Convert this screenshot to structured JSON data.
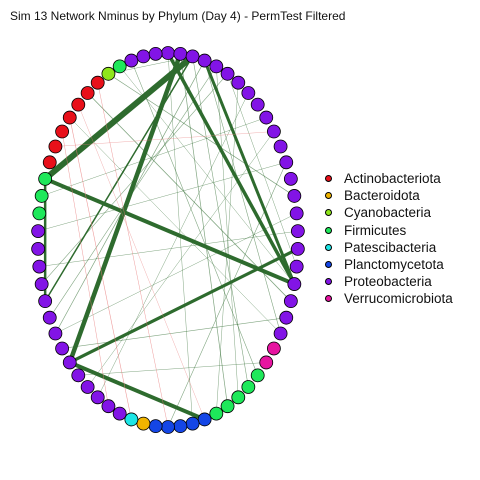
{
  "title": "Sim 13 Network Nminus by Phylum (Day 4) - PermTest Filtered",
  "chart_data": {
    "type": "network",
    "layout": "circle",
    "legend_position": "right",
    "legend": [
      {
        "label": "Actinobacteriota",
        "color": "#e8101a"
      },
      {
        "label": "Bacteroidota",
        "color": "#f0b400"
      },
      {
        "label": "Cyanobacteria",
        "color": "#8fe61a"
      },
      {
        "label": "Firmicutes",
        "color": "#1ee85a"
      },
      {
        "label": "Patescibacteria",
        "color": "#1de6e6"
      },
      {
        "label": "Planctomycetota",
        "color": "#1446e6"
      },
      {
        "label": "Proteobacteria",
        "color": "#8214e6"
      },
      {
        "label": "Verrucomicrobiota",
        "color": "#e614a0"
      }
    ],
    "node_phyla": [
      "Proteobacteria",
      "Proteobacteria",
      "Proteobacteria",
      "Proteobacteria",
      "Proteobacteria",
      "Proteobacteria",
      "Proteobacteria",
      "Proteobacteria",
      "Proteobacteria",
      "Proteobacteria",
      "Proteobacteria",
      "Proteobacteria",
      "Proteobacteria",
      "Proteobacteria",
      "Proteobacteria",
      "Proteobacteria",
      "Proteobacteria",
      "Proteobacteria",
      "Proteobacteria",
      "Proteobacteria",
      "Proteobacteria",
      "Proteobacteria",
      "Proteobacteria",
      "Verrucomicrobiota",
      "Verrucomicrobiota",
      "Firmicutes",
      "Firmicutes",
      "Firmicutes",
      "Firmicutes",
      "Firmicutes",
      "Planctomycetota",
      "Planctomycetota",
      "Planctomycetota",
      "Planctomycetota",
      "Planctomycetota",
      "Bacteroidota",
      "Patescibacteria",
      "Proteobacteria",
      "Proteobacteria",
      "Proteobacteria",
      "Proteobacteria",
      "Proteobacteria",
      "Proteobacteria",
      "Proteobacteria",
      "Proteobacteria",
      "Proteobacteria",
      "Proteobacteria",
      "Proteobacteria",
      "Proteobacteria",
      "Proteobacteria",
      "Proteobacteria",
      "Firmicutes",
      "Firmicutes",
      "Firmicutes",
      "Actinobacteriota",
      "Actinobacteriota",
      "Actinobacteriota",
      "Actinobacteriota",
      "Actinobacteriota",
      "Actinobacteriota",
      "Actinobacteriota",
      "Cyanobacteria",
      "Firmicutes",
      "Proteobacteria",
      "Proteobacteria",
      "Proteobacteria"
    ],
    "edges": [
      {
        "source": 2,
        "target": 53,
        "weight": 6,
        "sign": "positive"
      },
      {
        "source": 1,
        "target": 42,
        "weight": 4.5,
        "sign": "positive"
      },
      {
        "source": 0,
        "target": 19,
        "weight": 3.5,
        "sign": "positive"
      },
      {
        "source": 53,
        "target": 19,
        "weight": 4,
        "sign": "positive"
      },
      {
        "source": 3,
        "target": 19,
        "weight": 3,
        "sign": "positive"
      },
      {
        "source": 42,
        "target": 17,
        "weight": 3.2,
        "sign": "positive"
      },
      {
        "source": 46,
        "target": 53,
        "weight": 2.5,
        "sign": "positive"
      },
      {
        "source": 42,
        "target": 30,
        "weight": 4,
        "sign": "positive"
      },
      {
        "source": 46,
        "target": 2,
        "weight": 1.5,
        "sign": "positive"
      },
      {
        "source": 59,
        "target": 20,
        "weight": 0.8,
        "sign": "positive"
      },
      {
        "source": 61,
        "target": 14,
        "weight": 0.7,
        "sign": "positive"
      },
      {
        "source": 63,
        "target": 25,
        "weight": 0.6,
        "sign": "positive"
      },
      {
        "source": 44,
        "target": 3,
        "weight": 0.7,
        "sign": "positive"
      },
      {
        "source": 47,
        "target": 5,
        "weight": 0.6,
        "sign": "positive"
      },
      {
        "source": 45,
        "target": 4,
        "weight": 0.6,
        "sign": "positive"
      },
      {
        "source": 1,
        "target": 28,
        "weight": 0.7,
        "sign": "positive"
      },
      {
        "source": 2,
        "target": 26,
        "weight": 0.6,
        "sign": "positive"
      },
      {
        "source": 3,
        "target": 22,
        "weight": 0.6,
        "sign": "positive"
      },
      {
        "source": 4,
        "target": 27,
        "weight": 0.5,
        "sign": "positive"
      },
      {
        "source": 5,
        "target": 18,
        "weight": 0.5,
        "sign": "positive"
      },
      {
        "source": 6,
        "target": 29,
        "weight": 0.5,
        "sign": "positive"
      },
      {
        "source": 0,
        "target": 31,
        "weight": 0.5,
        "sign": "positive"
      },
      {
        "source": 12,
        "target": 33,
        "weight": 0.6,
        "sign": "positive"
      },
      {
        "source": 15,
        "target": 44,
        "weight": 0.5,
        "sign": "positive"
      },
      {
        "source": 10,
        "target": 40,
        "weight": 0.5,
        "sign": "positive"
      },
      {
        "source": 52,
        "target": 9,
        "weight": 0.5,
        "sign": "positive"
      },
      {
        "source": 50,
        "target": 12,
        "weight": 0.5,
        "sign": "positive"
      },
      {
        "source": 48,
        "target": 16,
        "weight": 0.5,
        "sign": "positive"
      },
      {
        "source": 43,
        "target": 21,
        "weight": 0.6,
        "sign": "positive"
      },
      {
        "source": 41,
        "target": 24,
        "weight": 0.5,
        "sign": "positive"
      },
      {
        "source": 39,
        "target": 7,
        "weight": 0.5,
        "sign": "positive"
      },
      {
        "source": 61,
        "target": 2,
        "weight": 0.5,
        "sign": "positive"
      },
      {
        "source": 57,
        "target": 22,
        "weight": 0.5,
        "sign": "positive"
      },
      {
        "source": 62,
        "target": 19,
        "weight": 0.5,
        "sign": "positive"
      },
      {
        "source": 57,
        "target": 36,
        "weight": 0.6,
        "sign": "negative"
      },
      {
        "source": 56,
        "target": 38,
        "weight": 0.5,
        "sign": "negative"
      },
      {
        "source": 60,
        "target": 33,
        "weight": 0.5,
        "sign": "negative"
      },
      {
        "source": 58,
        "target": 30,
        "weight": 0.4,
        "sign": "negative"
      },
      {
        "source": 55,
        "target": 10,
        "weight": 0.4,
        "sign": "negative"
      }
    ]
  }
}
